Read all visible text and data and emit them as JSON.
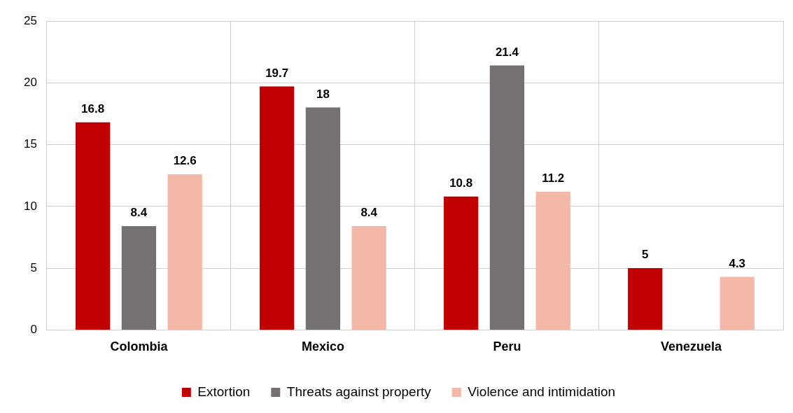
{
  "chart_data": {
    "type": "bar",
    "categories": [
      "Colombia",
      "Mexico",
      "Peru",
      "Venezuela"
    ],
    "series": [
      {
        "name": "Extortion",
        "color": "#c00000",
        "values": [
          16.8,
          19.7,
          10.8,
          5
        ]
      },
      {
        "name": "Threats against property",
        "color": "#767171",
        "values": [
          8.4,
          18,
          21.4,
          null
        ]
      },
      {
        "name": "Violence and intimidation",
        "color": "#f4b8a8",
        "values": [
          12.6,
          8.4,
          11.2,
          4.3
        ]
      }
    ],
    "ylim": [
      0,
      25
    ],
    "yticks": [
      0,
      5,
      10,
      15,
      20,
      25
    ],
    "grid": true,
    "legend": "bottom",
    "data_labels": true
  }
}
